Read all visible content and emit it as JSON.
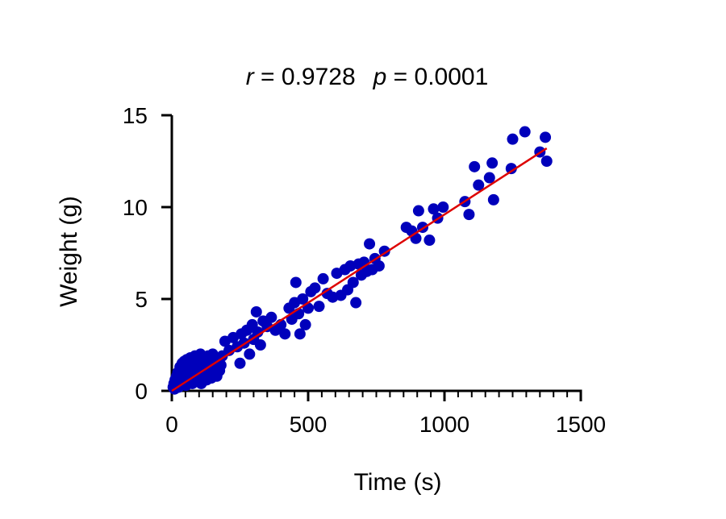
{
  "chart_data": {
    "type": "scatter",
    "title_parts": {
      "r_symbol": "r",
      "r_text": " = 0.9728",
      "p_symbol": "p",
      "p_text": " = 0.0001"
    },
    "xlabel": "Time (s)",
    "ylabel": "Weight (g)",
    "xlim": [
      0,
      1500
    ],
    "ylim": [
      0,
      15
    ],
    "xticks": [
      0,
      500,
      1000,
      1500
    ],
    "xtick_labels": [
      "0",
      "500",
      "1000",
      "1500"
    ],
    "x_minor_step": 50,
    "yticks": [
      0,
      5,
      10,
      15
    ],
    "ytick_labels": [
      "0",
      "5",
      "10",
      "15"
    ],
    "grid": false,
    "legend": "none",
    "colors": {
      "points": "#0000BB",
      "fit_line": "#DD0000",
      "axes": "#000000"
    },
    "fit_line": {
      "x": [
        0,
        1375
      ],
      "y": [
        0.0,
        13.2
      ]
    },
    "points": [
      {
        "x": 5,
        "y": 0.2
      },
      {
        "x": 8,
        "y": 0.4
      },
      {
        "x": 10,
        "y": 0.1
      },
      {
        "x": 12,
        "y": 0.6
      },
      {
        "x": 15,
        "y": 0.3
      },
      {
        "x": 18,
        "y": 0.8
      },
      {
        "x": 20,
        "y": 0.5
      },
      {
        "x": 22,
        "y": 1.0
      },
      {
        "x": 25,
        "y": 0.2
      },
      {
        "x": 28,
        "y": 0.7
      },
      {
        "x": 30,
        "y": 1.3
      },
      {
        "x": 33,
        "y": 0.4
      },
      {
        "x": 35,
        "y": 0.9
      },
      {
        "x": 38,
        "y": 1.5
      },
      {
        "x": 40,
        "y": 0.6
      },
      {
        "x": 43,
        "y": 1.1
      },
      {
        "x": 45,
        "y": 1.6
      },
      {
        "x": 48,
        "y": 0.8
      },
      {
        "x": 50,
        "y": 1.2
      },
      {
        "x": 52,
        "y": 0.3
      },
      {
        "x": 55,
        "y": 1.7
      },
      {
        "x": 58,
        "y": 0.9
      },
      {
        "x": 60,
        "y": 1.4
      },
      {
        "x": 62,
        "y": 0.5
      },
      {
        "x": 65,
        "y": 1.0
      },
      {
        "x": 68,
        "y": 1.8
      },
      {
        "x": 70,
        "y": 0.7
      },
      {
        "x": 73,
        "y": 1.3
      },
      {
        "x": 75,
        "y": 0.4
      },
      {
        "x": 78,
        "y": 1.6
      },
      {
        "x": 80,
        "y": 1.1
      },
      {
        "x": 83,
        "y": 0.8
      },
      {
        "x": 85,
        "y": 1.9
      },
      {
        "x": 88,
        "y": 0.5
      },
      {
        "x": 90,
        "y": 1.4
      },
      {
        "x": 93,
        "y": 1.0
      },
      {
        "x": 95,
        "y": 0.6
      },
      {
        "x": 98,
        "y": 1.7
      },
      {
        "x": 100,
        "y": 1.2
      },
      {
        "x": 103,
        "y": 0.9
      },
      {
        "x": 105,
        "y": 2.0
      },
      {
        "x": 108,
        "y": 0.4
      },
      {
        "x": 110,
        "y": 1.5
      },
      {
        "x": 113,
        "y": 1.1
      },
      {
        "x": 115,
        "y": 0.7
      },
      {
        "x": 118,
        "y": 1.8
      },
      {
        "x": 120,
        "y": 1.3
      },
      {
        "x": 123,
        "y": 0.9
      },
      {
        "x": 125,
        "y": 1.6
      },
      {
        "x": 128,
        "y": 0.6
      },
      {
        "x": 130,
        "y": 1.2
      },
      {
        "x": 133,
        "y": 1.9
      },
      {
        "x": 135,
        "y": 0.8
      },
      {
        "x": 138,
        "y": 1.4
      },
      {
        "x": 140,
        "y": 1.0
      },
      {
        "x": 143,
        "y": 1.7
      },
      {
        "x": 145,
        "y": 0.7
      },
      {
        "x": 148,
        "y": 1.3
      },
      {
        "x": 150,
        "y": 2.0
      },
      {
        "x": 153,
        "y": 1.1
      },
      {
        "x": 155,
        "y": 0.9
      },
      {
        "x": 158,
        "y": 1.5
      },
      {
        "x": 160,
        "y": 1.8
      },
      {
        "x": 163,
        "y": 1.2
      },
      {
        "x": 165,
        "y": 0.8
      },
      {
        "x": 170,
        "y": 1.6
      },
      {
        "x": 175,
        "y": 1.1
      },
      {
        "x": 180,
        "y": 1.4
      },
      {
        "x": 185,
        "y": 1.9
      },
      {
        "x": 195,
        "y": 2.7
      },
      {
        "x": 210,
        "y": 2.2
      },
      {
        "x": 225,
        "y": 2.9
      },
      {
        "x": 240,
        "y": 2.4
      },
      {
        "x": 250,
        "y": 1.5
      },
      {
        "x": 255,
        "y": 3.1
      },
      {
        "x": 265,
        "y": 2.6
      },
      {
        "x": 275,
        "y": 3.3
      },
      {
        "x": 285,
        "y": 2.0
      },
      {
        "x": 295,
        "y": 3.6
      },
      {
        "x": 300,
        "y": 2.8
      },
      {
        "x": 310,
        "y": 4.3
      },
      {
        "x": 315,
        "y": 3.2
      },
      {
        "x": 325,
        "y": 2.5
      },
      {
        "x": 335,
        "y": 3.8
      },
      {
        "x": 350,
        "y": 3.5
      },
      {
        "x": 365,
        "y": 4.0
      },
      {
        "x": 380,
        "y": 3.3
      },
      {
        "x": 400,
        "y": 3.6
      },
      {
        "x": 415,
        "y": 3.1
      },
      {
        "x": 430,
        "y": 4.5
      },
      {
        "x": 440,
        "y": 3.9
      },
      {
        "x": 450,
        "y": 4.8
      },
      {
        "x": 455,
        "y": 5.9
      },
      {
        "x": 465,
        "y": 4.2
      },
      {
        "x": 470,
        "y": 3.1
      },
      {
        "x": 480,
        "y": 5.0
      },
      {
        "x": 490,
        "y": 3.6
      },
      {
        "x": 500,
        "y": 4.5
      },
      {
        "x": 510,
        "y": 5.4
      },
      {
        "x": 525,
        "y": 5.6
      },
      {
        "x": 540,
        "y": 4.6
      },
      {
        "x": 555,
        "y": 6.1
      },
      {
        "x": 570,
        "y": 5.3
      },
      {
        "x": 590,
        "y": 5.1
      },
      {
        "x": 605,
        "y": 6.4
      },
      {
        "x": 620,
        "y": 5.2
      },
      {
        "x": 635,
        "y": 6.6
      },
      {
        "x": 645,
        "y": 5.5
      },
      {
        "x": 655,
        "y": 6.8
      },
      {
        "x": 665,
        "y": 5.9
      },
      {
        "x": 675,
        "y": 4.8
      },
      {
        "x": 685,
        "y": 6.9
      },
      {
        "x": 695,
        "y": 6.3
      },
      {
        "x": 705,
        "y": 7.0
      },
      {
        "x": 715,
        "y": 6.5
      },
      {
        "x": 725,
        "y": 8.0
      },
      {
        "x": 735,
        "y": 6.6
      },
      {
        "x": 745,
        "y": 7.2
      },
      {
        "x": 760,
        "y": 6.8
      },
      {
        "x": 780,
        "y": 7.6
      },
      {
        "x": 860,
        "y": 8.9
      },
      {
        "x": 880,
        "y": 8.7
      },
      {
        "x": 895,
        "y": 8.3
      },
      {
        "x": 905,
        "y": 9.8
      },
      {
        "x": 920,
        "y": 8.9
      },
      {
        "x": 945,
        "y": 8.2
      },
      {
        "x": 960,
        "y": 9.9
      },
      {
        "x": 975,
        "y": 9.4
      },
      {
        "x": 995,
        "y": 10.0
      },
      {
        "x": 1075,
        "y": 10.3
      },
      {
        "x": 1090,
        "y": 9.6
      },
      {
        "x": 1110,
        "y": 12.2
      },
      {
        "x": 1125,
        "y": 11.2
      },
      {
        "x": 1165,
        "y": 11.6
      },
      {
        "x": 1175,
        "y": 12.4
      },
      {
        "x": 1180,
        "y": 10.4
      },
      {
        "x": 1245,
        "y": 12.1
      },
      {
        "x": 1250,
        "y": 13.7
      },
      {
        "x": 1295,
        "y": 14.1
      },
      {
        "x": 1350,
        "y": 13.0
      },
      {
        "x": 1370,
        "y": 13.8
      },
      {
        "x": 1375,
        "y": 12.5
      }
    ]
  }
}
